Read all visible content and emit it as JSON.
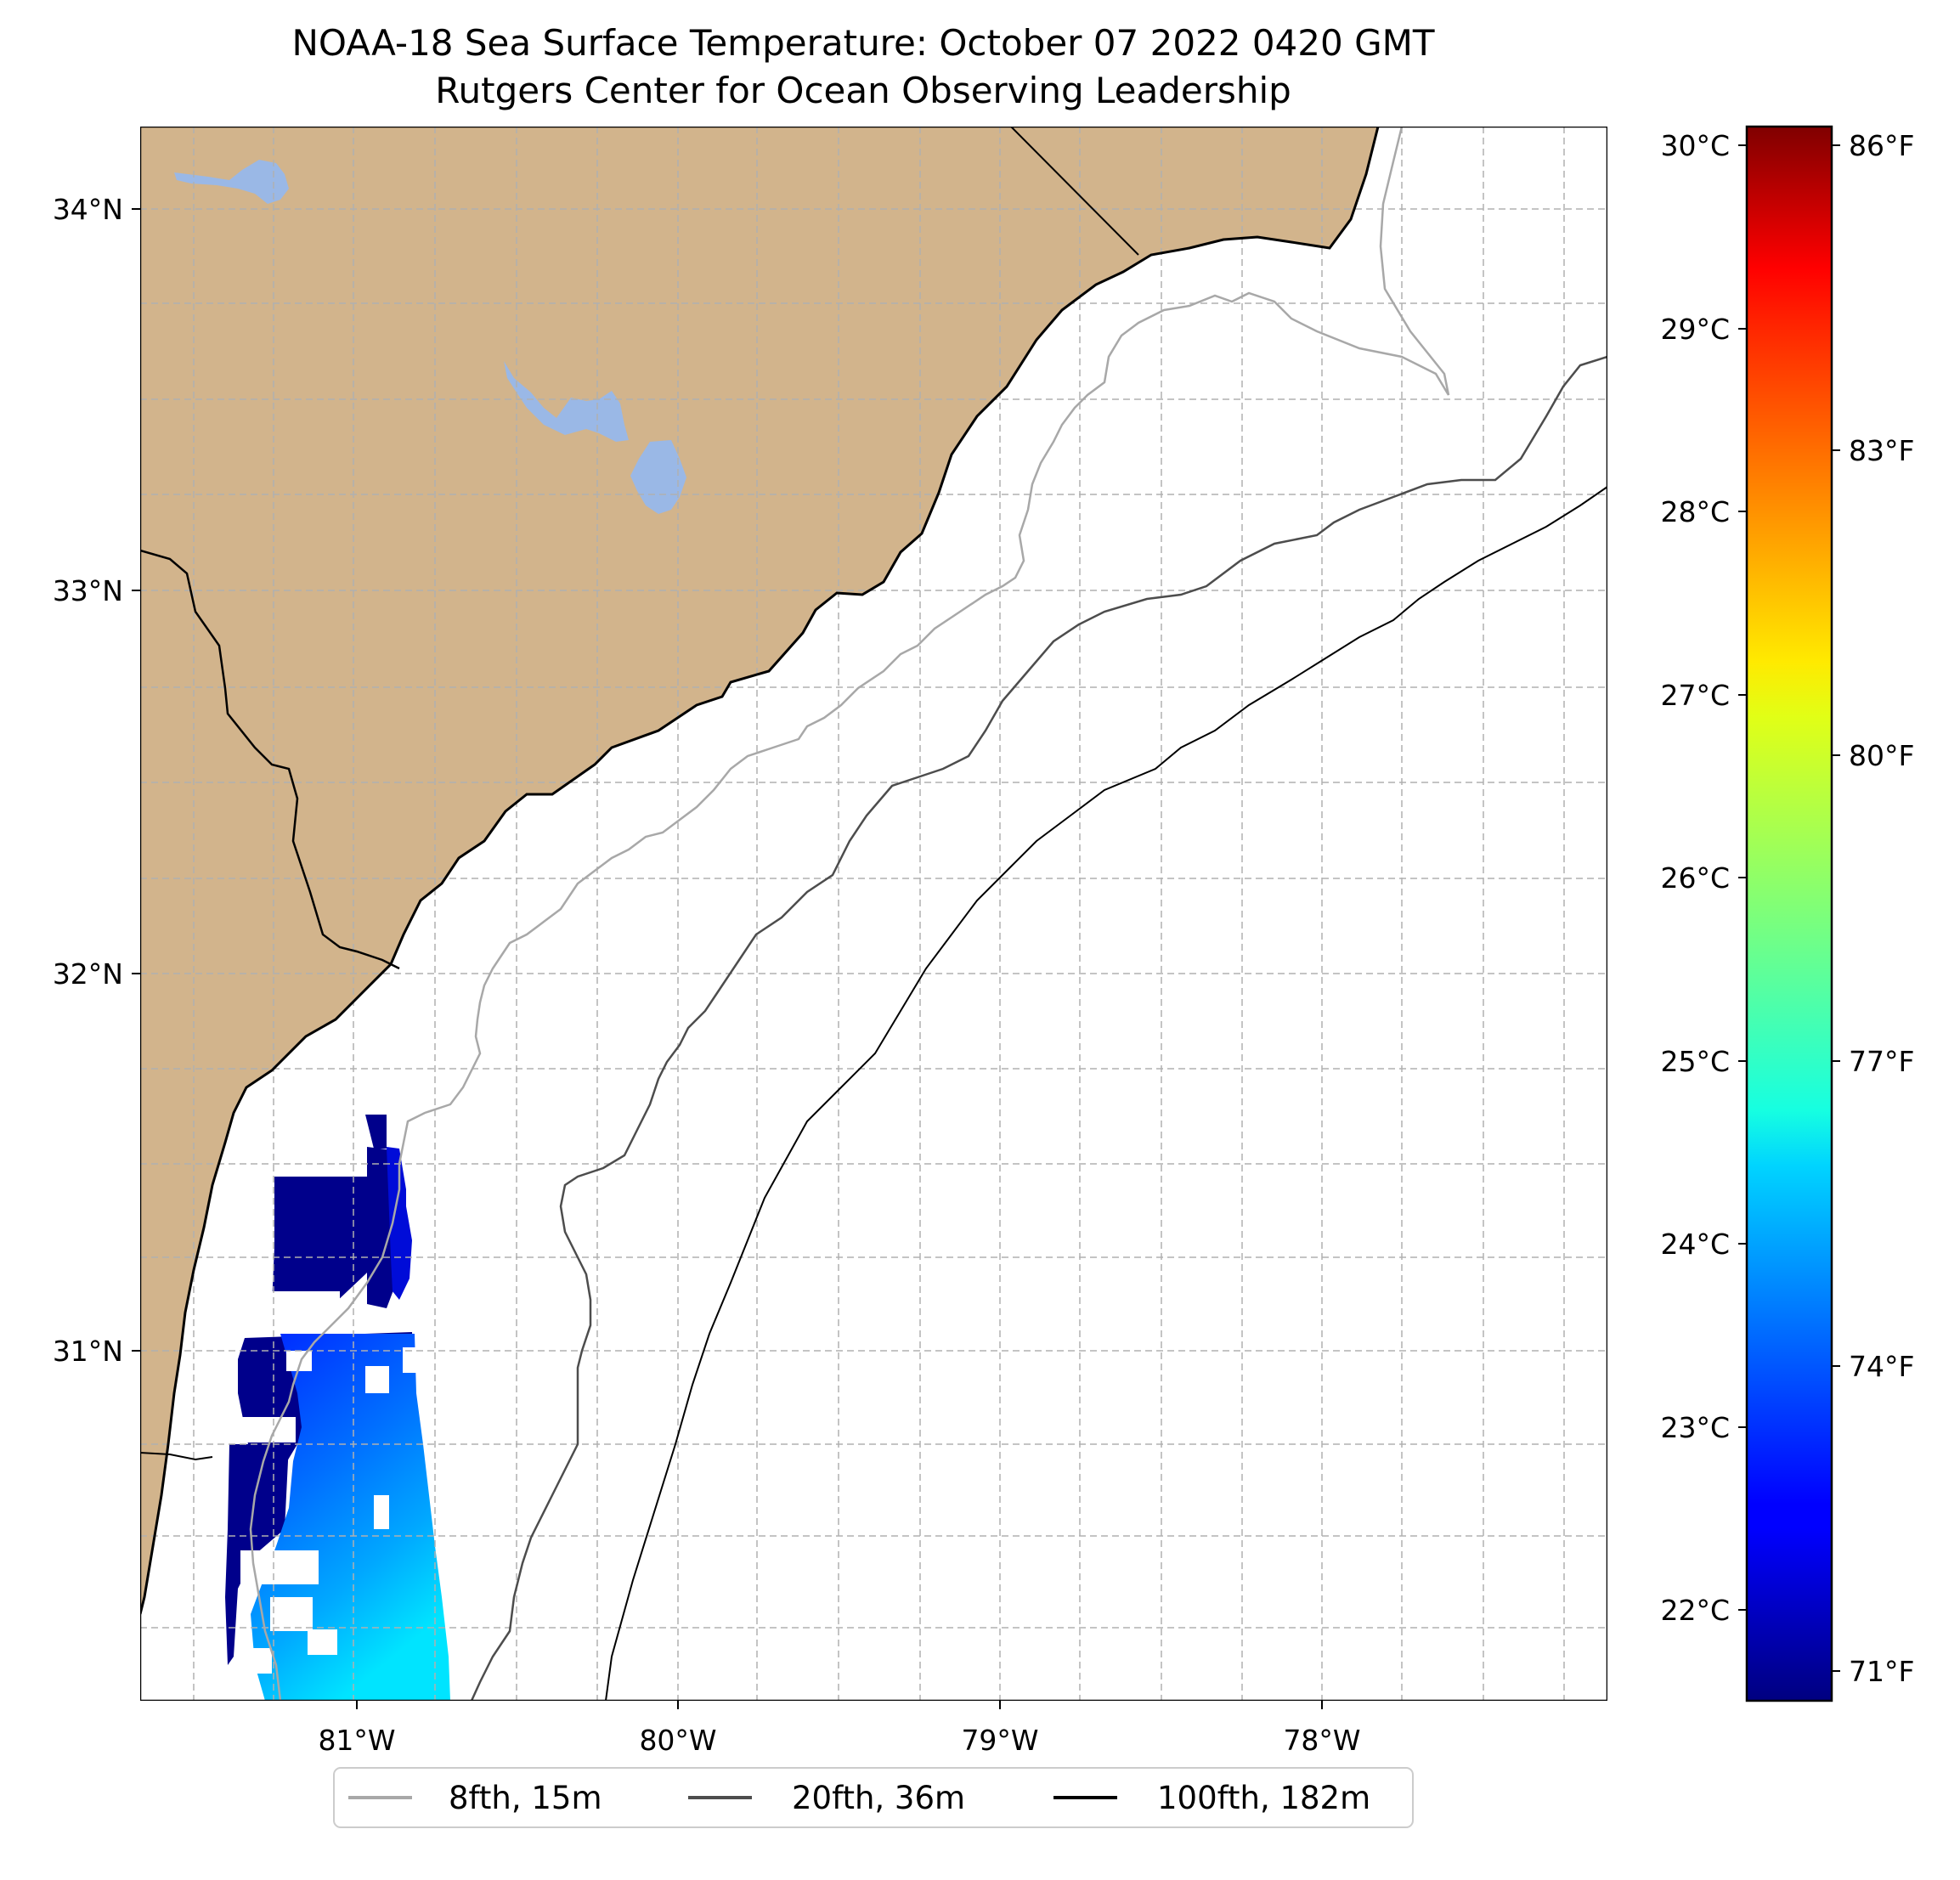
{
  "title": {
    "line1": "NOAA-18 Sea Surface Temperature: October 07 2022 0420 GMT",
    "line2": "Rutgers Center for Ocean Observing Leadership"
  },
  "colors": {
    "land": "#d2b48c",
    "lakes": "#9ab8e6",
    "coastline": "#000000",
    "isobath_8fth": "#a8a8a8",
    "isobath_20fth": "#4d4d4d",
    "isobath_100fth": "#000000",
    "gridline": "#b0b0b0",
    "colormap": "jet"
  },
  "map": {
    "longitude_labels": [
      "81°W",
      "80°W",
      "79°W",
      "78°W"
    ],
    "latitude_labels": [
      "34°N",
      "33°N",
      "32°N",
      "31°N"
    ],
    "gridlines": true,
    "gridline_style": "dashed"
  },
  "colorbar": {
    "celsius_labels": [
      "30°C",
      "29°C",
      "28°C",
      "27°C",
      "26°C",
      "25°C",
      "24°C",
      "23°C",
      "22°C"
    ],
    "fahrenheit_labels": [
      "86°F",
      "83°F",
      "80°F",
      "77°F",
      "74°F",
      "71°F"
    ]
  },
  "legend": {
    "placement": "bottom-center",
    "entries": [
      {
        "label": "8fth, 15m",
        "color": "#a8a8a8"
      },
      {
        "label": "20fth, 36m",
        "color": "#4d4d4d"
      },
      {
        "label": "100fth, 182m",
        "color": "#000000"
      }
    ]
  },
  "chart_data": {
    "type": "heatmap",
    "title": "NOAA-18 Sea Surface Temperature: October 07 2022 0420 GMT",
    "subtitle": "Rutgers Center for Ocean Observing Leadership",
    "x_ticks": [
      "81°W",
      "80°W",
      "79°W",
      "78°W"
    ],
    "y_ticks": [
      "34°N",
      "33°N",
      "32°N",
      "31°N"
    ],
    "colorbar_range_c": [
      21.5,
      30.1
    ],
    "colorbar_range_f": [
      70.7,
      86.2
    ],
    "sst_observed_range_c": [
      21.6,
      24.4
    ],
    "sst_observation_region": "southwest corner, approx 30.2°N–31.6°N, 81.4°W–80.7°W",
    "grid": true,
    "legend": "bottom-center"
  }
}
